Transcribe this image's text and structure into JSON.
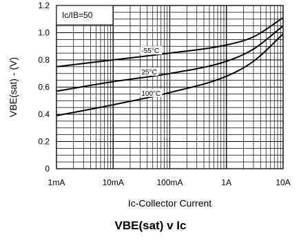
{
  "chart_data": {
    "type": "line",
    "title": "VBE(sat) v Ic",
    "xlabel": "Ic-Collector Current",
    "ylabel": "VBE(sat) - (V)",
    "x_scale": "log",
    "xlim": [
      "1mA",
      "10A"
    ],
    "ylim": [
      0,
      1.2
    ],
    "x_ticks": [
      "1mA",
      "10mA",
      "100mA",
      "1A",
      "10A"
    ],
    "y_ticks": [
      "0",
      "0.2",
      "0.4",
      "0.6",
      "0.8",
      "1.0",
      "1.2"
    ],
    "grid": true,
    "legend_note": "Ic/IB=50",
    "legend_placement": "top-left",
    "x": [
      "1mA",
      "10mA",
      "100mA",
      "1A",
      "3A",
      "10A"
    ],
    "series": [
      {
        "name": "-55°C",
        "values": [
          0.75,
          0.8,
          0.85,
          0.91,
          0.97,
          1.11
        ]
      },
      {
        "name": "25°C",
        "values": [
          0.57,
          0.64,
          0.7,
          0.79,
          0.88,
          1.05
        ]
      },
      {
        "name": "100°C",
        "values": [
          0.39,
          0.47,
          0.56,
          0.68,
          0.79,
          0.99
        ]
      }
    ],
    "x_decades": [
      -3,
      -2,
      -1,
      0,
      0.4771,
      1
    ],
    "label_positions": [
      {
        "series": "-55°C",
        "x": "~30mA"
      },
      {
        "series": "25°C",
        "x": "~30mA"
      },
      {
        "series": "100°C",
        "x": "~30mA"
      }
    ]
  }
}
